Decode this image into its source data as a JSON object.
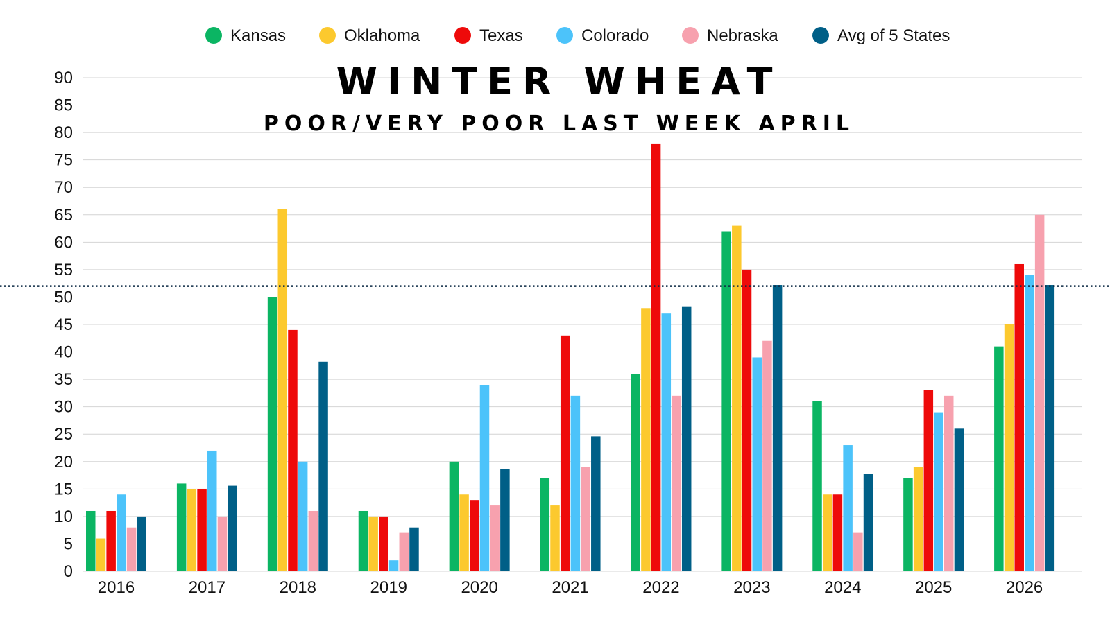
{
  "chart_data": {
    "type": "bar",
    "title": "WINTER WHEAT",
    "subtitle": "POOR/VERY POOR LAST WEEK APRIL",
    "xlabel": "",
    "ylabel": "",
    "ylim": [
      0,
      90
    ],
    "yticks": [
      0,
      5,
      10,
      15,
      20,
      25,
      30,
      35,
      40,
      45,
      50,
      55,
      60,
      65,
      70,
      75,
      80,
      85,
      90
    ],
    "grid": true,
    "legend_position": "top",
    "reference_line": {
      "value": 52,
      "style": "dotted",
      "color": "#0d2b45"
    },
    "categories": [
      "2016",
      "2017",
      "2018",
      "2019",
      "2020",
      "2021",
      "2022",
      "2023",
      "2024",
      "2025",
      "2026"
    ],
    "series": [
      {
        "name": "Kansas",
        "color": "#0bb563",
        "values": [
          11,
          16,
          50,
          11,
          20,
          17,
          36,
          62,
          31,
          17,
          41
        ]
      },
      {
        "name": "Oklahoma",
        "color": "#fcc92e",
        "values": [
          6,
          15,
          66,
          10,
          14,
          12,
          48,
          63,
          14,
          19,
          45
        ]
      },
      {
        "name": "Texas",
        "color": "#ee0a0a",
        "values": [
          11,
          15,
          44,
          10,
          13,
          43,
          78,
          55,
          14,
          33,
          56
        ]
      },
      {
        "name": "Colorado",
        "color": "#4cc3fa",
        "values": [
          14,
          22,
          20,
          2,
          34,
          32,
          47,
          39,
          23,
          29,
          54
        ]
      },
      {
        "name": "Nebraska",
        "color": "#f7a1ae",
        "values": [
          8,
          10,
          11,
          7,
          12,
          19,
          32,
          42,
          7,
          32,
          65
        ]
      },
      {
        "name": "Avg of 5 States",
        "color": "#005f87",
        "values": [
          10,
          15.6,
          38.2,
          8,
          18.6,
          24.6,
          48.2,
          52.2,
          17.8,
          26,
          52.2
        ]
      }
    ]
  }
}
